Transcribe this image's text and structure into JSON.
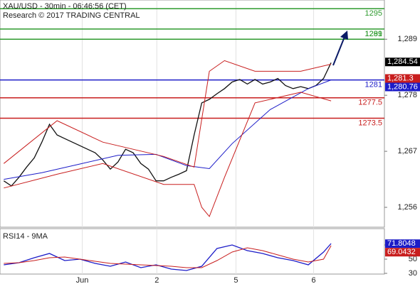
{
  "chart_data": [
    {
      "type": "line",
      "title": "XAU/USD - 30min - 06:46:56 (CET)",
      "subtitle": "Research © 2017 TRADING CENTRAL",
      "xlim": [
        -0.5,
        50
      ],
      "xticks": [
        {
          "value": 10.3,
          "label": "Jun"
        },
        {
          "value": 20.1,
          "label": "2"
        },
        {
          "value": 30.5,
          "label": "5"
        },
        {
          "value": 40.7,
          "label": "6"
        }
      ],
      "ylim": [
        1252.1,
        1296.7
      ],
      "yticks": [
        {
          "value": 1256,
          "label": "1,256"
        },
        {
          "value": 1267,
          "label": "1,267"
        },
        {
          "value": 1278,
          "label": "1,278"
        },
        {
          "value": 1289,
          "label": "1,289"
        }
      ],
      "series": [
        {
          "color": "#111111",
          "x": [
            0,
            1,
            2,
            3,
            4,
            5,
            6,
            7,
            8,
            9,
            10,
            11,
            12,
            13,
            14,
            15,
            16,
            17,
            18,
            19,
            20,
            21,
            22,
            23,
            24,
            25,
            26,
            27,
            28,
            29,
            30,
            31,
            32,
            33,
            34,
            35,
            36,
            37,
            38,
            39,
            40,
            41,
            42,
            43
          ],
          "values": [
            1261.2,
            1260.2,
            1261.9,
            1263.9,
            1265.7,
            1268.8,
            1272.3,
            1270.2,
            1269.5,
            1268.8,
            1268.1,
            1267.4,
            1266.7,
            1265.3,
            1263.5,
            1264.9,
            1267.4,
            1266.7,
            1264.6,
            1263.5,
            1261.2,
            1261.2,
            1261.9,
            1262.5,
            1263.2,
            1270.2,
            1276.5,
            1277.2,
            1278.3,
            1279.3,
            1280.6,
            1281.1,
            1280.2,
            1281.1,
            1280.2,
            1280.6,
            1281.3,
            1279.9,
            1279.3,
            1279.7,
            1279.3,
            1279.9,
            1281.3,
            1284.4
          ]
        },
        {
          "color": "#1c1cc8",
          "x": [
            0,
            5,
            10,
            15,
            20,
            24,
            27,
            30,
            35,
            40,
            43
          ],
          "values": [
            1261.5,
            1262.8,
            1264.5,
            1266.2,
            1266.4,
            1264.2,
            1263.6,
            1268.5,
            1275.2,
            1279.3,
            1281.0
          ]
        },
        {
          "color": "#c81e1e",
          "x": [
            0,
            7,
            13,
            21,
            25,
            27,
            29,
            33,
            39,
            43
          ],
          "values": [
            1264.6,
            1273,
            1268.8,
            1266,
            1263.9,
            1282.7,
            1284.8,
            1282.7,
            1282.7,
            1284.1
          ]
        },
        {
          "color": "#c81e1e",
          "x": [
            0,
            7,
            13,
            21,
            25,
            26,
            27,
            29,
            33,
            39,
            43
          ],
          "values": [
            1259.8,
            1262.5,
            1264.6,
            1260.5,
            1260.5,
            1256,
            1254.2,
            1261.9,
            1276.5,
            1278.6,
            1276.9
          ]
        }
      ],
      "levels": [
        {
          "value": 1295,
          "color": "#2e9a2e"
        },
        {
          "value": 1291,
          "color": "#2e9a2e"
        },
        {
          "value": 1289,
          "color": "#2e9a2e"
        },
        {
          "value": 1281,
          "color": "#1c1cc8"
        },
        {
          "value": 1277.5,
          "color": "#c81e1e"
        },
        {
          "value": 1273.5,
          "color": "#c81e1e"
        }
      ],
      "price_labels": [
        {
          "value": 1284.54,
          "label": "1,284.54",
          "color": "#000000"
        },
        {
          "value": 1281.3,
          "label": "1,281.3",
          "color": "#c81e1e"
        },
        {
          "value": 1280.76,
          "label": "1,280.76",
          "color": "#1c1cc8"
        }
      ]
    },
    {
      "type": "line",
      "title": "RSI14 - 9MA",
      "xlim": [
        -0.5,
        50
      ],
      "ylim": [
        29,
        93
      ],
      "yticks": [
        30,
        50,
        70
      ],
      "series": [
        {
          "color": "#1c1cc8",
          "x": [
            0,
            2,
            4,
            6,
            8,
            10,
            12,
            14,
            16,
            18,
            20,
            22,
            24,
            26,
            28,
            30,
            32,
            34,
            36,
            38,
            40,
            42,
            43
          ],
          "values": [
            42,
            45,
            52,
            58,
            48,
            50,
            44,
            40,
            46,
            38,
            42,
            36,
            34,
            40,
            65,
            70,
            62,
            58,
            52,
            48,
            42,
            60,
            72
          ]
        },
        {
          "color": "#c81e1e",
          "x": [
            0,
            2,
            4,
            6,
            8,
            10,
            12,
            14,
            16,
            18,
            20,
            22,
            24,
            26,
            28,
            30,
            32,
            34,
            36,
            38,
            40,
            42,
            43
          ],
          "values": [
            44,
            45,
            48,
            52,
            53,
            50,
            47,
            44,
            43,
            42,
            41,
            40,
            38,
            38,
            48,
            60,
            66,
            62,
            56,
            50,
            46,
            50,
            69
          ]
        }
      ],
      "price_labels": [
        {
          "value": 71.8048,
          "color": "#1c1cc8"
        },
        {
          "value": 69.0432,
          "color": "#c81e1e"
        }
      ]
    }
  ]
}
